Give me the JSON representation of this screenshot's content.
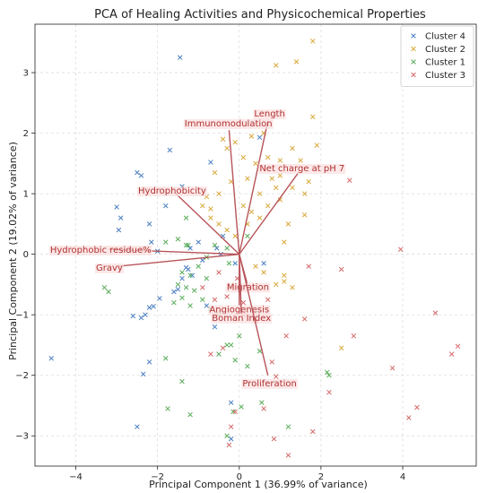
{
  "chart_data": {
    "type": "scatter",
    "title": "PCA of Healing Activities and Physicochemical Properties",
    "xlabel": "Principal Component 1 (36.99% of variance)",
    "ylabel": "Principal Component 2 (19.02% of variance)",
    "xlim": [
      -5.0,
      5.8
    ],
    "ylim": [
      -3.5,
      3.8
    ],
    "xticks": [
      -4,
      -2,
      0,
      2,
      4
    ],
    "yticks": [
      -3,
      -2,
      -1,
      0,
      1,
      2,
      3
    ],
    "grid": true,
    "legend_position": "top-right",
    "series": [
      {
        "name": "Cluster 4",
        "color": "#4a7fc1",
        "marker": "x",
        "points": [
          [
            -4.6,
            -1.72
          ],
          [
            -1.45,
            3.25
          ],
          [
            -3.0,
            0.78
          ],
          [
            -2.9,
            0.6
          ],
          [
            -2.95,
            0.4
          ],
          [
            -2.5,
            1.35
          ],
          [
            -2.4,
            1.3
          ],
          [
            -2.2,
            0.5
          ],
          [
            -2.15,
            0.2
          ],
          [
            -2.0,
            0.05
          ],
          [
            -1.95,
            -0.73
          ],
          [
            -2.1,
            -0.86
          ],
          [
            -2.2,
            -0.88
          ],
          [
            -2.3,
            -1.0
          ],
          [
            -2.4,
            -1.05
          ],
          [
            -2.6,
            -1.02
          ],
          [
            -2.2,
            -1.78
          ],
          [
            -2.35,
            -1.98
          ],
          [
            -2.5,
            -2.85
          ],
          [
            -1.7,
            1.72
          ],
          [
            -1.4,
            1.12
          ],
          [
            -1.8,
            0.8
          ],
          [
            -1.6,
            -0.62
          ],
          [
            -1.5,
            -0.58
          ],
          [
            -1.4,
            -0.4
          ],
          [
            -1.3,
            -0.22
          ],
          [
            -1.15,
            -0.35
          ],
          [
            -1.25,
            -0.25
          ],
          [
            -1.2,
            0.1
          ],
          [
            -1.0,
            0.2
          ],
          [
            -0.8,
            -0.85
          ],
          [
            -0.6,
            -1.2
          ],
          [
            -0.45,
            0.0
          ],
          [
            -0.2,
            -2.45
          ],
          [
            -0.2,
            -3.05
          ],
          [
            -0.1,
            -0.15
          ],
          [
            0.5,
            1.93
          ],
          [
            -0.7,
            1.52
          ],
          [
            -0.4,
            0.3
          ],
          [
            0.6,
            -0.15
          ],
          [
            -0.9,
            -0.1
          ],
          [
            -0.55,
            0.1
          ]
        ]
      },
      {
        "name": "Cluster 2",
        "color": "#d9a83b",
        "marker": "x",
        "points": [
          [
            1.8,
            3.52
          ],
          [
            0.9,
            3.12
          ],
          [
            1.4,
            3.18
          ],
          [
            1.8,
            2.27
          ],
          [
            0.6,
            2.0
          ],
          [
            0.3,
            1.95
          ],
          [
            -0.1,
            1.85
          ],
          [
            -0.3,
            1.75
          ],
          [
            -0.4,
            1.9
          ],
          [
            0.1,
            1.6
          ],
          [
            0.4,
            1.5
          ],
          [
            0.7,
            1.6
          ],
          [
            1.0,
            1.55
          ],
          [
            1.3,
            1.75
          ],
          [
            1.5,
            1.55
          ],
          [
            1.9,
            1.8
          ],
          [
            1.7,
            1.2
          ],
          [
            1.6,
            1.0
          ],
          [
            1.3,
            1.1
          ],
          [
            1.0,
            1.3
          ],
          [
            0.8,
            1.25
          ],
          [
            0.5,
            1.0
          ],
          [
            0.3,
            0.7
          ],
          [
            0.1,
            0.8
          ],
          [
            -0.2,
            1.2
          ],
          [
            -0.5,
            1.0
          ],
          [
            -0.8,
            0.95
          ],
          [
            -0.9,
            0.8
          ],
          [
            -0.7,
            0.6
          ],
          [
            -0.5,
            0.5
          ],
          [
            -0.3,
            0.4
          ],
          [
            -0.1,
            0.3
          ],
          [
            0.2,
            0.5
          ],
          [
            0.5,
            0.6
          ],
          [
            0.7,
            0.8
          ],
          [
            1.0,
            0.9
          ],
          [
            1.2,
            0.5
          ],
          [
            1.6,
            0.65
          ],
          [
            1.1,
            0.2
          ],
          [
            0.6,
            -0.3
          ],
          [
            0.9,
            -0.5
          ],
          [
            1.1,
            -0.45
          ],
          [
            1.3,
            -0.55
          ],
          [
            1.1,
            -0.35
          ],
          [
            0.4,
            -0.2
          ],
          [
            2.5,
            -1.55
          ],
          [
            -0.7,
            0.75
          ],
          [
            0.2,
            1.25
          ],
          [
            -0.6,
            1.35
          ],
          [
            0.9,
            1.1
          ]
        ]
      },
      {
        "name": "Cluster 1",
        "color": "#5aad5a",
        "marker": "x",
        "points": [
          [
            -3.3,
            -0.55
          ],
          [
            -3.2,
            -0.62
          ],
          [
            -1.8,
            0.2
          ],
          [
            -1.5,
            0.25
          ],
          [
            -1.3,
            0.15
          ],
          [
            -1.4,
            -0.3
          ],
          [
            -1.2,
            -0.35
          ],
          [
            -1.5,
            -0.5
          ],
          [
            -1.3,
            -0.55
          ],
          [
            -1.1,
            -0.6
          ],
          [
            -1.4,
            -0.72
          ],
          [
            -1.6,
            -0.8
          ],
          [
            -1.2,
            -0.85
          ],
          [
            -0.9,
            -0.75
          ],
          [
            -0.7,
            -0.9
          ],
          [
            -0.5,
            -1.0
          ],
          [
            -0.3,
            -1.5
          ],
          [
            -0.5,
            -1.65
          ],
          [
            -0.1,
            -1.75
          ],
          [
            0.0,
            -1.35
          ],
          [
            -0.2,
            -1.5
          ],
          [
            0.2,
            -1.85
          ],
          [
            0.5,
            -1.6
          ],
          [
            -1.8,
            -1.72
          ],
          [
            -1.4,
            -2.1
          ],
          [
            -1.2,
            -2.65
          ],
          [
            -1.75,
            -2.55
          ],
          [
            0.05,
            -2.52
          ],
          [
            -0.15,
            -2.6
          ],
          [
            -0.3,
            -3.0
          ],
          [
            0.55,
            -2.45
          ],
          [
            1.2,
            -2.85
          ],
          [
            2.15,
            -1.95
          ],
          [
            2.2,
            -2.0
          ],
          [
            -0.8,
            -0.05
          ],
          [
            -0.6,
            0.15
          ],
          [
            -0.3,
            0.1
          ],
          [
            0.2,
            0.3
          ],
          [
            -1.3,
            0.6
          ],
          [
            -1.25,
            0.15
          ],
          [
            -1.0,
            -0.2
          ],
          [
            -0.8,
            -0.4
          ],
          [
            -0.25,
            -0.15
          ]
        ]
      },
      {
        "name": "Cluster 3",
        "color": "#d46a6a",
        "marker": "x",
        "points": [
          [
            2.7,
            1.22
          ],
          [
            3.95,
            0.08
          ],
          [
            2.5,
            -0.25
          ],
          [
            1.7,
            -0.2
          ],
          [
            1.6,
            -1.07
          ],
          [
            2.8,
            -1.35
          ],
          [
            4.8,
            -0.97
          ],
          [
            5.2,
            -1.65
          ],
          [
            5.35,
            -1.52
          ],
          [
            3.75,
            -1.88
          ],
          [
            4.35,
            -2.53
          ],
          [
            4.15,
            -2.7
          ],
          [
            2.2,
            -2.28
          ],
          [
            1.8,
            -2.93
          ],
          [
            1.2,
            -3.32
          ],
          [
            0.85,
            -3.05
          ],
          [
            0.6,
            -2.55
          ],
          [
            0.9,
            -2.02
          ],
          [
            0.8,
            -1.78
          ],
          [
            1.15,
            -1.35
          ],
          [
            0.4,
            -1.1
          ],
          [
            0.1,
            -0.8
          ],
          [
            -0.3,
            -0.7
          ],
          [
            -0.6,
            -0.75
          ],
          [
            -0.7,
            -1.65
          ],
          [
            -0.4,
            -1.55
          ],
          [
            -0.1,
            -2.6
          ],
          [
            -0.2,
            -2.85
          ],
          [
            -0.25,
            -3.15
          ],
          [
            -0.9,
            -0.55
          ],
          [
            -0.5,
            -0.3
          ],
          [
            -0.05,
            -0.4
          ],
          [
            0.1,
            -1.0
          ],
          [
            0.7,
            -0.75
          ]
        ]
      }
    ],
    "loading_vectors": [
      {
        "label": "Length",
        "x": 0.7,
        "y": 2.2
      },
      {
        "label": "Immunomodulation",
        "x": -0.25,
        "y": 2.05
      },
      {
        "label": "Net charge at pH 7",
        "x": 1.45,
        "y": 1.35
      },
      {
        "label": "Hydrophobicity",
        "x": -1.55,
        "y": 1.0
      },
      {
        "label": "Hydrophobic residue%",
        "x": -3.2,
        "y": 0.08
      },
      {
        "label": "Gravy",
        "x": -3.0,
        "y": -0.2
      },
      {
        "label": "Migration",
        "x": 0.2,
        "y": -0.5
      },
      {
        "label": "Angiogenesis",
        "x": 0.0,
        "y": -0.85
      },
      {
        "label": "Boman Index",
        "x": 0.05,
        "y": -0.98
      },
      {
        "label": "Proliferation",
        "x": 0.7,
        "y": -2.0
      }
    ]
  }
}
